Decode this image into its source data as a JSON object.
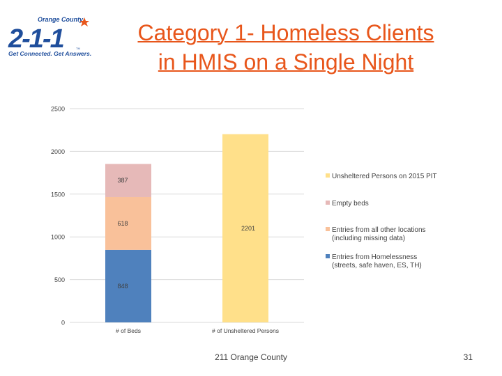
{
  "logo": {
    "top_text": "Orange County",
    "number": "2-1-1",
    "tagline": "Get Connected. Get Answers.",
    "tm": "TM"
  },
  "title_lines": [
    "Category 1- Homeless Clients",
    "in HMIS on a Single Night"
  ],
  "footer": {
    "text": "211 Orange County",
    "page_number": "31"
  },
  "chart_data": {
    "type": "bar",
    "stacked": true,
    "categories": [
      "# of Beds",
      "# of Unsheltered Persons"
    ],
    "ylim": [
      0,
      2500
    ],
    "yticks": [
      0,
      500,
      1000,
      1500,
      2000,
      2500
    ],
    "grid": true,
    "legend_position": "right",
    "series": [
      {
        "name": "Entries from Homelessness (streets, safe haven, ES, TH)",
        "legend_lines": [
          "Entries from Homelessness",
          "(streets, safe haven, ES, TH)"
        ],
        "values": [
          848,
          0
        ],
        "labels": [
          "848",
          ""
        ],
        "color": "#4f81bd"
      },
      {
        "name": "Entries from all other locations (including missing data)",
        "legend_lines": [
          "Entries from all other locations",
          "(including missing data)"
        ],
        "values": [
          618,
          0
        ],
        "labels": [
          "618",
          ""
        ],
        "color": "#f9c19a"
      },
      {
        "name": "Empty beds",
        "legend_lines": [
          "Empty beds"
        ],
        "values": [
          387,
          0
        ],
        "labels": [
          "387",
          ""
        ],
        "color": "#e6b9b8"
      },
      {
        "name": "Unsheltered Persons on 2015 PIT",
        "legend_lines": [
          "Unsheltered Persons on 2015 PIT"
        ],
        "values": [
          0,
          2201
        ],
        "labels": [
          "",
          "2201"
        ],
        "color": "#ffe08a"
      }
    ]
  }
}
